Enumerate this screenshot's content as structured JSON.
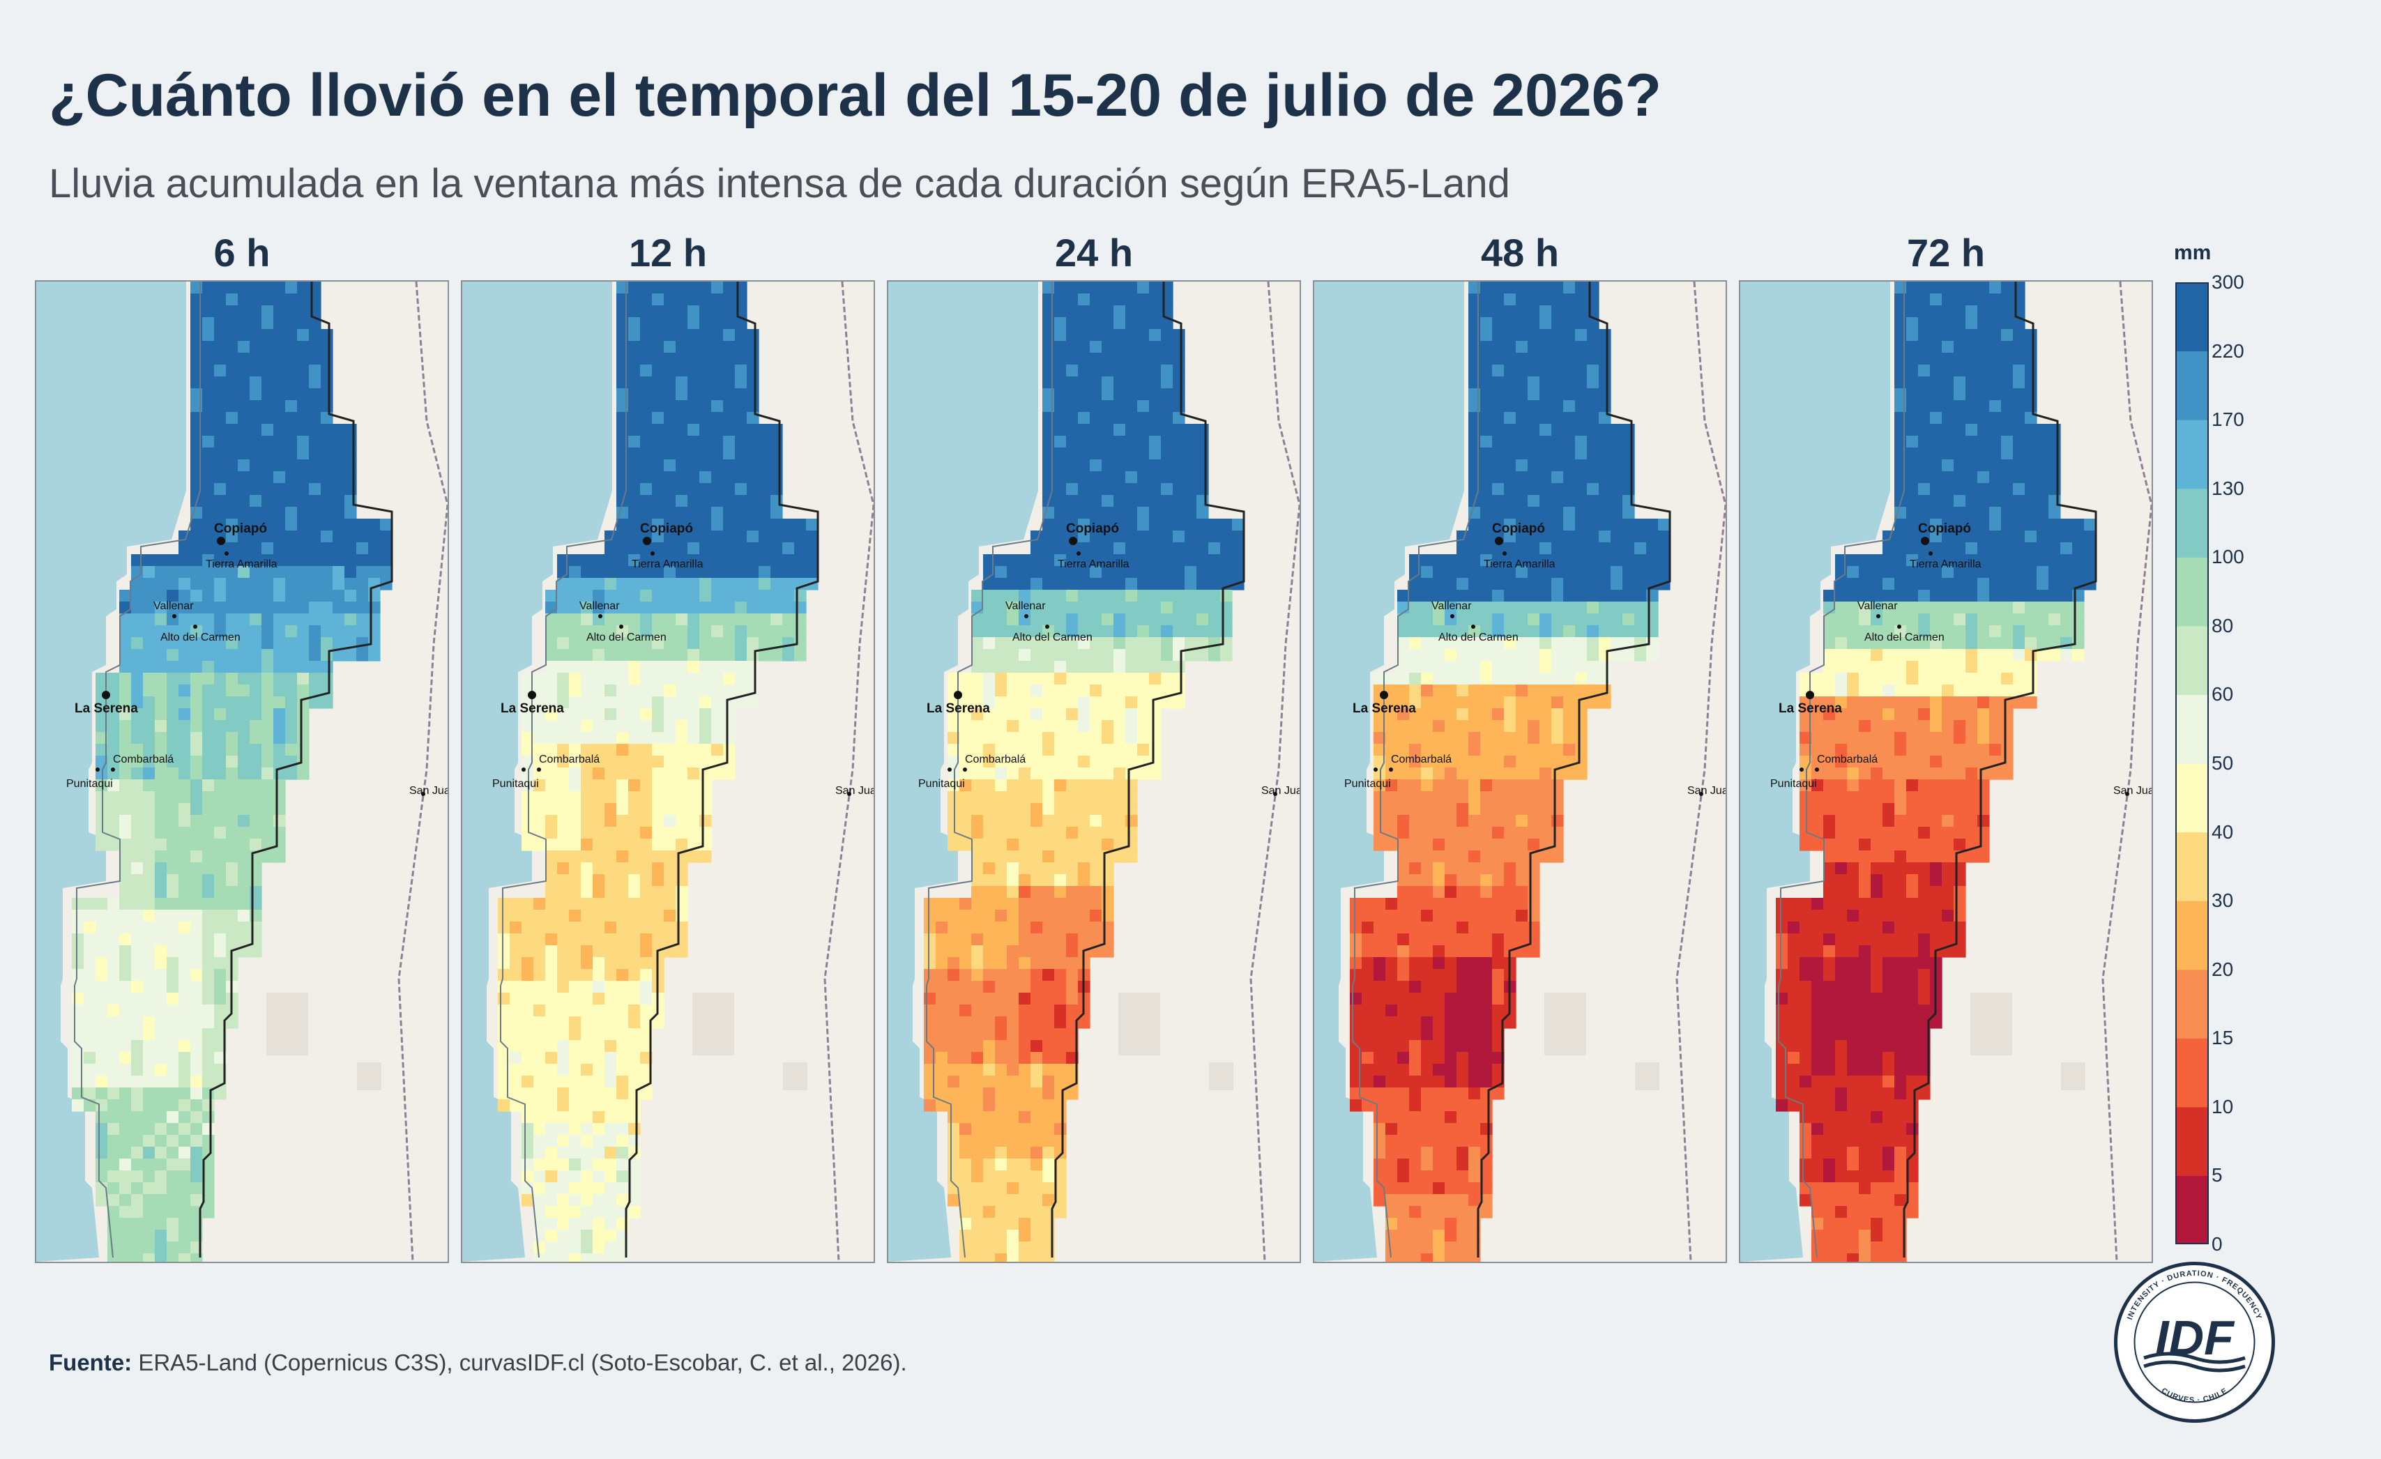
{
  "title": "¿Cuánto llovió en el temporal del 15-20 de julio de 2026?",
  "subtitle": "Lluvia acumulada en la ventana más intensa de cada duración según ERA5-Land",
  "panels": [
    {
      "label": "6 h"
    },
    {
      "label": "12 h"
    },
    {
      "label": "24 h"
    },
    {
      "label": "48 h"
    },
    {
      "label": "72 h"
    }
  ],
  "places": {
    "major": [
      "Copiapó",
      "La Serena"
    ],
    "minor": [
      "Tierra Amarilla",
      "Vallenar",
      "Alto del Carmen",
      "Combarbalá",
      "Punitaqui",
      "San Juan"
    ]
  },
  "colorbar": {
    "unit": "mm",
    "ticks": [
      "0",
      "5",
      "10",
      "15",
      "20",
      "30",
      "40",
      "50",
      "60",
      "80",
      "100",
      "130",
      "170",
      "220",
      "300"
    ],
    "colors": [
      "#b2183b",
      "#d73027",
      "#f4633c",
      "#f98e52",
      "#fdb557",
      "#fdd980",
      "#fefdbd",
      "#edf5e3",
      "#cbe8c4",
      "#a6dcb5",
      "#82cbc4",
      "#5eb3d6",
      "#4193c6",
      "#2266a8"
    ]
  },
  "source": {
    "label": "Fuente:",
    "text": " ERA5-Land (Copernicus C3S), curvasIDF.cl (Soto-Escobar, C. et al., 2026)."
  },
  "logo": {
    "text": "IDF",
    "ring_top": "INTENSITY · DURATION · FREQUENCY",
    "ring_bottom": "CURVES · CHILE"
  }
}
